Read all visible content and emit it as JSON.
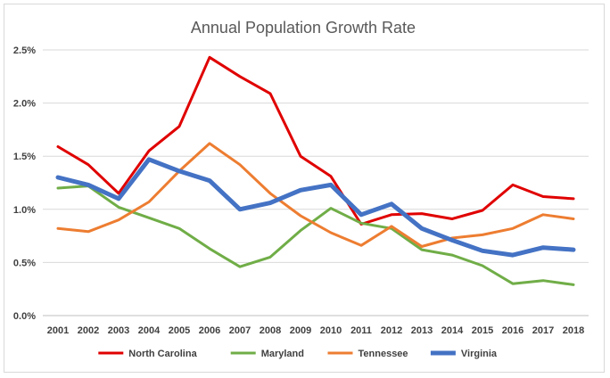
{
  "chart_data": {
    "type": "line",
    "title": "Annual Population Growth Rate",
    "xlabel": "",
    "ylabel": "",
    "categories": [
      "2001",
      "2002",
      "2003",
      "2004",
      "2005",
      "2006",
      "2007",
      "2008",
      "2009",
      "2010",
      "2011",
      "2012",
      "2013",
      "2014",
      "2015",
      "2016",
      "2017",
      "2018"
    ],
    "ylim": [
      0,
      2.5
    ],
    "y_ticks": [
      {
        "value": 0.0,
        "label": "0.0%"
      },
      {
        "value": 0.5,
        "label": "0.5%"
      },
      {
        "value": 1.0,
        "label": "1.0%"
      },
      {
        "value": 1.5,
        "label": "1.5%"
      },
      {
        "value": 2.0,
        "label": "2.0%"
      },
      {
        "value": 2.5,
        "label": "2.5%"
      }
    ],
    "grid": true,
    "legend_position": "bottom",
    "series": [
      {
        "name": "North Carolina",
        "color": "#e00000",
        "weight": "normal",
        "values": [
          1.59,
          1.42,
          1.15,
          1.55,
          1.78,
          2.43,
          2.25,
          2.09,
          1.5,
          1.31,
          0.86,
          0.95,
          0.96,
          0.91,
          0.99,
          1.23,
          1.12,
          1.1
        ]
      },
      {
        "name": "Maryland",
        "color": "#70ad47",
        "weight": "normal",
        "values": [
          1.2,
          1.22,
          1.02,
          0.92,
          0.82,
          0.63,
          0.46,
          0.55,
          0.8,
          1.01,
          0.87,
          0.82,
          0.62,
          0.57,
          0.47,
          0.3,
          0.33,
          0.29
        ]
      },
      {
        "name": "Tennessee",
        "color": "#ed7d31",
        "weight": "normal",
        "values": [
          0.82,
          0.79,
          0.9,
          1.07,
          1.36,
          1.62,
          1.42,
          1.15,
          0.94,
          0.78,
          0.66,
          0.84,
          0.65,
          0.73,
          0.76,
          0.82,
          0.95,
          0.91
        ]
      },
      {
        "name": "Virginia",
        "color": "#4472c4",
        "weight": "bold",
        "values": [
          1.3,
          1.23,
          1.1,
          1.47,
          1.36,
          1.27,
          1.0,
          1.06,
          1.18,
          1.23,
          0.95,
          1.05,
          0.82,
          0.71,
          0.61,
          0.57,
          0.64,
          0.62
        ]
      }
    ]
  }
}
